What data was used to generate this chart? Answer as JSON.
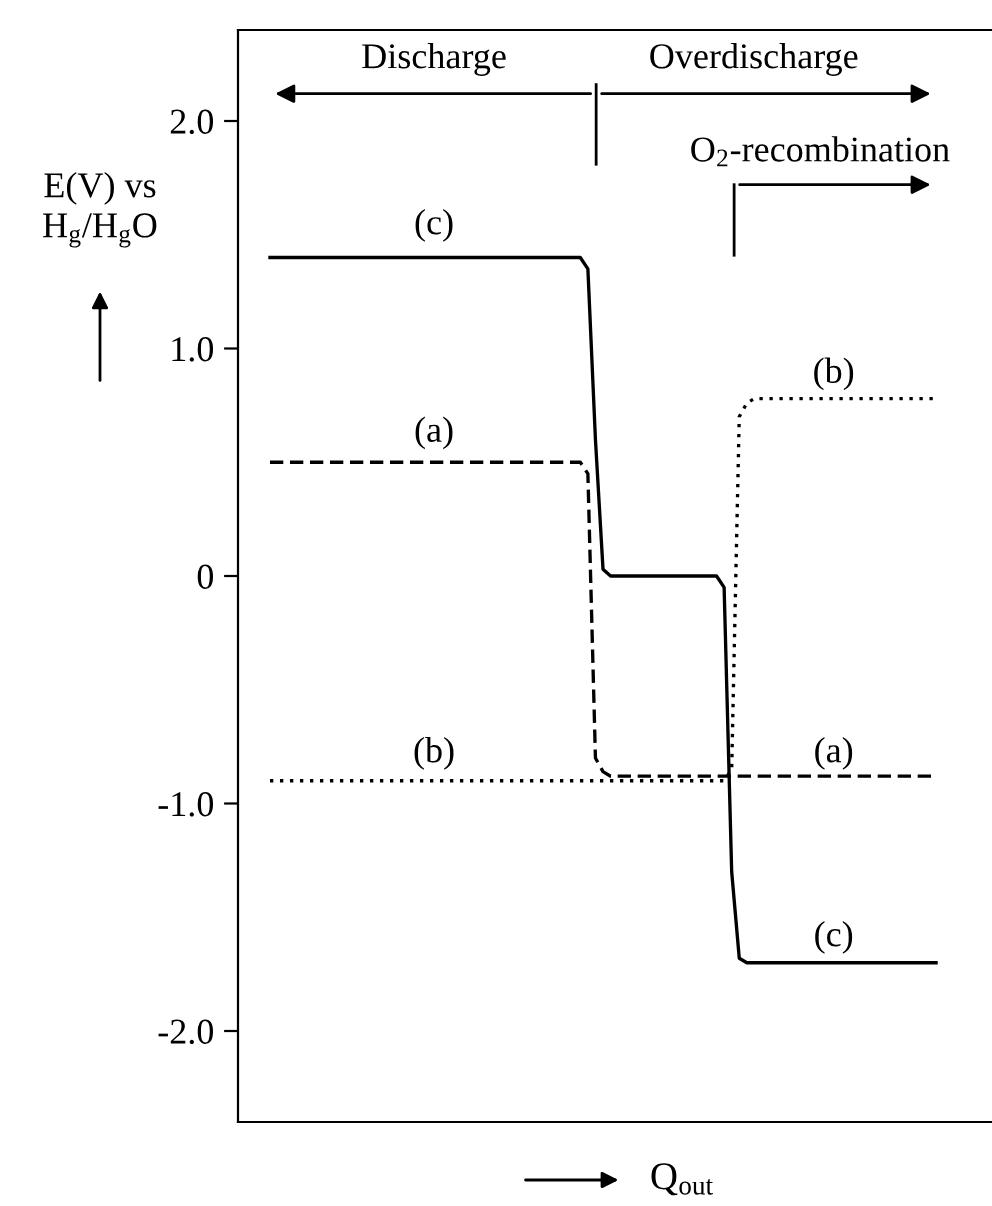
{
  "chart_data": {
    "type": "line",
    "xlabel": "Q$_{out}$",
    "ylabel": "E(V) vs\nH$_{g}$/H$_{g}$O",
    "categories": [
      null,
      null,
      null,
      null,
      null,
      null,
      null,
      null,
      null,
      null,
      null,
      null,
      null,
      null,
      null,
      null,
      null,
      null,
      null,
      null,
      null,
      null,
      null,
      null,
      null,
      null,
      null,
      null,
      null,
      null,
      null,
      null,
      null,
      null,
      null,
      null,
      null,
      null,
      null,
      null,
      null,
      null,
      null,
      null,
      null,
      null,
      null,
      null,
      null,
      null,
      null,
      null,
      null,
      null,
      null,
      null,
      null,
      null,
      null,
      null,
      null,
      null,
      null,
      null,
      null,
      null,
      null,
      null,
      null,
      null,
      null,
      null,
      null,
      null,
      null,
      null,
      null,
      null,
      null,
      null,
      null,
      null,
      null,
      null,
      null,
      null,
      null,
      null,
      null
    ],
    "ylim": [
      -2.4,
      2.4
    ],
    "yticks": [
      {
        "value": 2.0,
        "label": "2.0"
      },
      {
        "value": 1.0,
        "label": "1.0"
      },
      0,
      {
        "value": -1.0,
        "label": "-1.0"
      },
      {
        "value": -2.0,
        "label": "-2.0"
      }
    ],
    "tick_labels": "y",
    "grid": false,
    "marker": "none",
    "series": [
      {
        "color": "#000000",
        "line_style": "solid",
        "values": [
          1.4,
          1.4,
          1.4,
          1.4,
          1.4,
          1.4,
          1.4,
          1.4,
          1.4,
          1.4,
          1.4,
          1.4,
          1.4,
          1.4,
          1.4,
          1.4,
          1.4,
          1.4,
          1.4,
          1.4,
          1.4,
          1.4,
          1.4,
          1.4,
          1.4,
          1.4,
          1.4,
          1.4,
          1.4,
          1.4,
          1.4,
          1.4,
          1.4,
          1.4,
          1.4,
          1.4,
          1.4,
          1.4,
          1.4,
          1.4,
          1.4,
          1.4,
          1.35,
          0.6,
          0.03,
          0,
          0,
          0,
          0,
          0,
          0,
          0,
          0,
          0,
          0,
          0,
          0,
          0,
          0,
          0,
          -0.05,
          -1.3,
          -1.68,
          -1.7,
          -1.7,
          -1.7,
          -1.7,
          -1.7,
          -1.7,
          -1.7,
          -1.7,
          -1.7,
          -1.7,
          -1.7,
          -1.7,
          -1.7,
          -1.7,
          -1.7,
          -1.7,
          -1.7,
          -1.7,
          -1.7,
          -1.7,
          -1.7,
          -1.7,
          -1.7,
          -1.7,
          -1.7,
          -1.7
        ]
      },
      {
        "color": "#000000",
        "line_style": "dashed",
        "values": [
          0.5,
          0.5,
          0.5,
          0.5,
          0.5,
          0.5,
          0.5,
          0.5,
          0.5,
          0.5,
          0.5,
          0.5,
          0.5,
          0.5,
          0.5,
          0.5,
          0.5,
          0.5,
          0.5,
          0.5,
          0.5,
          0.5,
          0.5,
          0.5,
          0.5,
          0.5,
          0.5,
          0.5,
          0.5,
          0.5,
          0.5,
          0.5,
          0.5,
          0.5,
          0.5,
          0.5,
          0.5,
          0.5,
          0.5,
          0.5,
          0.5,
          0.5,
          0.45,
          -0.8,
          -0.86,
          -0.88,
          -0.88,
          -0.88,
          -0.88,
          -0.88,
          -0.88,
          -0.88,
          -0.88,
          -0.88,
          -0.88,
          -0.88,
          -0.88,
          -0.88,
          -0.88,
          -0.88,
          -0.88,
          -0.88,
          -0.88,
          -0.88,
          -0.88,
          -0.88,
          -0.88,
          -0.88,
          -0.88,
          -0.88,
          -0.88,
          -0.88,
          -0.88,
          -0.88,
          -0.88,
          -0.88,
          -0.88,
          -0.88,
          -0.88,
          -0.88,
          -0.88,
          -0.88,
          -0.88,
          -0.88,
          -0.88,
          -0.88,
          -0.88,
          -0.88,
          -0.88
        ]
      },
      {
        "color": "#000000",
        "line_style": "dotted",
        "values": [
          -0.9,
          -0.9,
          -0.9,
          -0.9,
          -0.9,
          -0.9,
          -0.9,
          -0.9,
          -0.9,
          -0.9,
          -0.9,
          -0.9,
          -0.9,
          -0.9,
          -0.9,
          -0.9,
          -0.9,
          -0.9,
          -0.9,
          -0.9,
          -0.9,
          -0.9,
          -0.9,
          -0.9,
          -0.9,
          -0.9,
          -0.9,
          -0.9,
          -0.9,
          -0.9,
          -0.9,
          -0.9,
          -0.9,
          -0.9,
          -0.9,
          -0.9,
          -0.9,
          -0.9,
          -0.9,
          -0.9,
          -0.9,
          -0.9,
          -0.9,
          -0.9,
          -0.9,
          -0.9,
          -0.9,
          -0.9,
          -0.9,
          -0.9,
          -0.9,
          -0.9,
          -0.9,
          -0.9,
          -0.9,
          -0.9,
          -0.9,
          -0.9,
          -0.9,
          -0.9,
          -0.9,
          -0.85,
          0.7,
          0.76,
          0.78,
          0.78,
          0.78,
          0.78,
          0.78,
          0.78,
          0.78,
          0.78,
          0.78,
          0.78,
          0.78,
          0.78,
          0.78,
          0.78,
          0.78,
          0.78,
          0.78,
          0.78,
          0.78,
          0.78,
          0.78,
          0.78,
          0.78,
          0.78,
          0.78
        ]
      }
    ],
    "annotations": [
      "(c)",
      "(a)",
      "(b)",
      "(b)",
      "(a)",
      "(c)",
      "Discharge",
      "Overdischarge",
      "O$_{2}$-recombination"
    ]
  }
}
